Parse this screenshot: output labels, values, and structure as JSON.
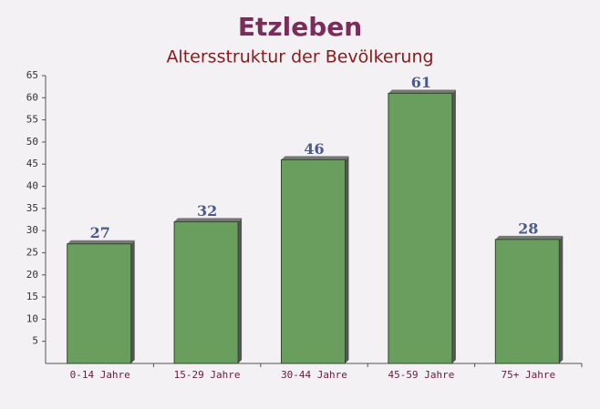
{
  "chart_data": {
    "type": "bar",
    "title": "Etzleben",
    "subtitle": "Altersstruktur der Bevölkerung",
    "categories": [
      "0-14 Jahre",
      "15-29 Jahre",
      "30-44 Jahre",
      "45-59 Jahre",
      "75+ Jahre"
    ],
    "values": [
      27,
      32,
      46,
      61,
      28
    ],
    "color": "#6a9e5e",
    "ylim": [
      0,
      65
    ],
    "yticks": [
      5,
      10,
      15,
      20,
      25,
      30,
      35,
      40,
      45,
      50,
      55,
      60,
      65
    ]
  }
}
